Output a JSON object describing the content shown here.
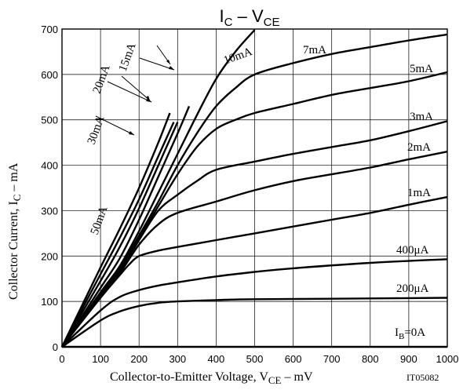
{
  "chart_data": {
    "type": "line",
    "title": {
      "main": "I",
      "sub": "C",
      "sep": " – ",
      "main2": "V",
      "sub2": "CE"
    },
    "xlabel": {
      "main": "Collector-to-Emitter Voltage, V",
      "sub": "CE",
      "unit": " –  mV"
    },
    "ylabel": {
      "main": "Collector Current, I",
      "sub": "C",
      "unit": " –  mA"
    },
    "figure_code": "IT05082",
    "xlim": [
      0,
      1000
    ],
    "ylim": [
      0,
      700
    ],
    "x_ticks": [
      0,
      100,
      200,
      300,
      400,
      500,
      600,
      700,
      800,
      900,
      1000
    ],
    "y_ticks": [
      0,
      100,
      200,
      300,
      400,
      500,
      600,
      700
    ],
    "grid": true,
    "series": [
      {
        "name": "IB=0A",
        "x": [
          0,
          1000
        ],
        "y": [
          0,
          0
        ]
      },
      {
        "name": "200μA",
        "x": [
          0,
          100,
          150,
          200,
          250,
          300,
          400,
          500,
          700,
          1000
        ],
        "y": [
          0,
          58,
          78,
          90,
          97,
          100,
          103,
          105,
          106,
          108
        ]
      },
      {
        "name": "400μA",
        "x": [
          0,
          100,
          150,
          200,
          250,
          300,
          400,
          500,
          600,
          800,
          1000
        ],
        "y": [
          0,
          80,
          110,
          125,
          135,
          142,
          155,
          165,
          173,
          185,
          193
        ]
      },
      {
        "name": "1mA",
        "x": [
          0,
          100,
          150,
          175,
          200,
          250,
          300,
          400,
          500,
          600,
          700,
          800,
          900,
          1000
        ],
        "y": [
          0,
          108,
          158,
          182,
          200,
          212,
          220,
          235,
          250,
          265,
          280,
          295,
          313,
          330
        ]
      },
      {
        "name": "2mA",
        "x": [
          0,
          100,
          150,
          200,
          250,
          300,
          400,
          500,
          600,
          700,
          800,
          900,
          1000
        ],
        "y": [
          0,
          110,
          162,
          225,
          270,
          295,
          320,
          345,
          365,
          380,
          395,
          413,
          430
        ]
      },
      {
        "name": "3mA",
        "x": [
          0,
          100,
          150,
          200,
          250,
          300,
          350,
          400,
          500,
          600,
          700,
          800,
          900,
          1000
        ],
        "y": [
          0,
          112,
          165,
          235,
          300,
          335,
          365,
          390,
          408,
          425,
          440,
          455,
          475,
          497
        ]
      },
      {
        "name": "5mA",
        "x": [
          0,
          100,
          150,
          200,
          250,
          300,
          350,
          400,
          450,
          500,
          600,
          700,
          800,
          900,
          1000
        ],
        "y": [
          0,
          115,
          168,
          240,
          310,
          380,
          440,
          480,
          500,
          515,
          535,
          555,
          570,
          585,
          605
        ]
      },
      {
        "name": "7mA",
        "x": [
          0,
          100,
          150,
          200,
          250,
          300,
          350,
          400,
          450,
          500,
          600,
          700,
          800,
          900,
          1000
        ],
        "y": [
          0,
          118,
          172,
          245,
          320,
          400,
          470,
          530,
          570,
          600,
          625,
          645,
          660,
          675,
          688
        ]
      },
      {
        "name": "10mA",
        "x": [
          0,
          100,
          150,
          200,
          250,
          300,
          350,
          400,
          450,
          500
        ],
        "y": [
          0,
          120,
          178,
          255,
          340,
          425,
          510,
          590,
          650,
          698
        ]
      },
      {
        "name": "15mA",
        "x": [
          0,
          100,
          150,
          200,
          250,
          300,
          330
        ],
        "y": [
          0,
          130,
          195,
          280,
          375,
          470,
          530
        ]
      },
      {
        "name": "20mA",
        "x": [
          0,
          100,
          150,
          200,
          250,
          300
        ],
        "y": [
          0,
          145,
          220,
          305,
          400,
          495
        ]
      },
      {
        "name": "30mA",
        "x": [
          0,
          100,
          150,
          200,
          250,
          290
        ],
        "y": [
          0,
          160,
          240,
          325,
          420,
          495
        ]
      },
      {
        "name": "50mA",
        "x": [
          0,
          100,
          150,
          200,
          250,
          280
        ],
        "y": [
          0,
          175,
          260,
          350,
          450,
          515
        ]
      }
    ],
    "annotations": [
      {
        "text": "50mA"
      },
      {
        "text": "30mA"
      },
      {
        "text": "20mA"
      },
      {
        "text": "15mA"
      },
      {
        "text": "10mA"
      },
      {
        "text": "7mA"
      },
      {
        "text": "5mA"
      },
      {
        "text": "3mA"
      },
      {
        "text": "2mA"
      },
      {
        "text": "1mA"
      },
      {
        "text": "400μA"
      },
      {
        "text": "200μA"
      },
      {
        "text": "I",
        "sub": "B",
        "rest": "=0A"
      }
    ]
  }
}
